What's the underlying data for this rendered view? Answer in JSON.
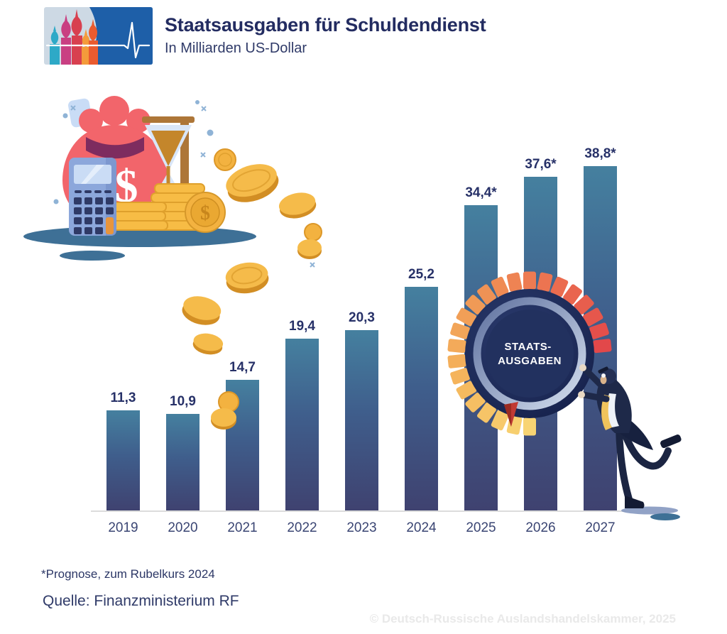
{
  "header": {
    "title": "Staatsausgaben für Schuldendienst",
    "subtitle": "In Milliarden US-Dollar"
  },
  "chart_data": {
    "type": "bar",
    "title": "Staatsausgaben für Schuldendienst",
    "xlabel": "",
    "ylabel": "In Milliarden US-Dollar",
    "categories": [
      "2019",
      "2020",
      "2021",
      "2022",
      "2023",
      "2024",
      "2025",
      "2026",
      "2027"
    ],
    "values": [
      11.3,
      10.9,
      14.7,
      19.4,
      20.3,
      25.2,
      34.4,
      37.6,
      38.8
    ],
    "value_labels": [
      "11,3",
      "10,9",
      "14,7",
      "19,4",
      "20,3",
      "25,2",
      "34,4*",
      "37,6*",
      "38,8*"
    ],
    "ylim": [
      0,
      40
    ],
    "grid": false,
    "legend": "none",
    "bar_color_top": "#45809F",
    "bar_color_bottom": "#3F4270",
    "note": "* = Prognose, zum Rubelkurs 2024"
  },
  "gauge": {
    "label_line1": "STAATS-",
    "label_line2": "AUSGABEN",
    "segment_colors": [
      "#F8D473",
      "#F5B75D",
      "#F09A56",
      "#EC7050",
      "#E2484A"
    ]
  },
  "footer": {
    "footnote": "*Prognose, zum Rubelkurs 2024",
    "source": "Quelle: Finanzministerium RF",
    "watermark": "© Deutsch-Russische Auslandshandelskammer, 2025"
  },
  "icons": {
    "logo": "st-basil-cathedral-domes-with-pulse-line",
    "illustration": "money-bag-calculator-hourglass-coins",
    "gauge": "segmented-dial-wheel-pushed-by-man"
  },
  "colors": {
    "title_navy": "#232C61",
    "label_navy": "#273168",
    "axis_gray": "#DCDCDC",
    "logo_blue": "#1E5FA8",
    "ground_teal": "#3E7096",
    "coin_gold": "#F3B240",
    "watermark_gray": "#E9E9E9"
  }
}
